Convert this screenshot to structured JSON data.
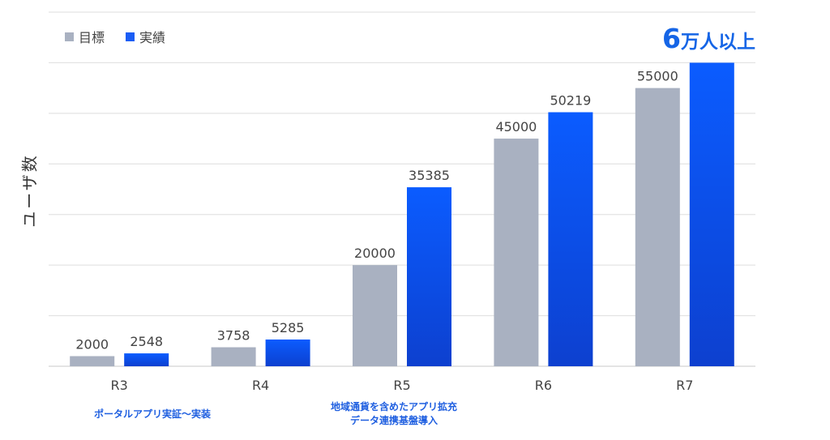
{
  "chart_data": {
    "type": "bar",
    "categories": [
      "R3",
      "R4",
      "R5",
      "R6",
      "R7"
    ],
    "series": [
      {
        "name": "目標",
        "values": [
          2000,
          3758,
          20000,
          45000,
          55000
        ],
        "color": "#a9b1c1"
      },
      {
        "name": "実績",
        "values": [
          2548,
          5285,
          35385,
          50219,
          60000
        ],
        "color": "#1a5df5"
      }
    ],
    "data_labels": [
      [
        "2000",
        "3758",
        "20000",
        "45000",
        "55000"
      ],
      [
        "2548",
        "5285",
        "35385",
        "50219",
        ""
      ]
    ],
    "ylabel": "ユーザ数",
    "ylim": [
      0,
      70000
    ],
    "grid": true,
    "legend": "top-left"
  },
  "callout": {
    "number": "6",
    "text": "万人以上"
  },
  "notes": [
    {
      "lines": [
        "ポータルアプリ実証〜実装"
      ]
    },
    {
      "lines": [
        "地域通貨を含めたアプリ拡充",
        "データ連携基盤導入"
      ]
    }
  ]
}
